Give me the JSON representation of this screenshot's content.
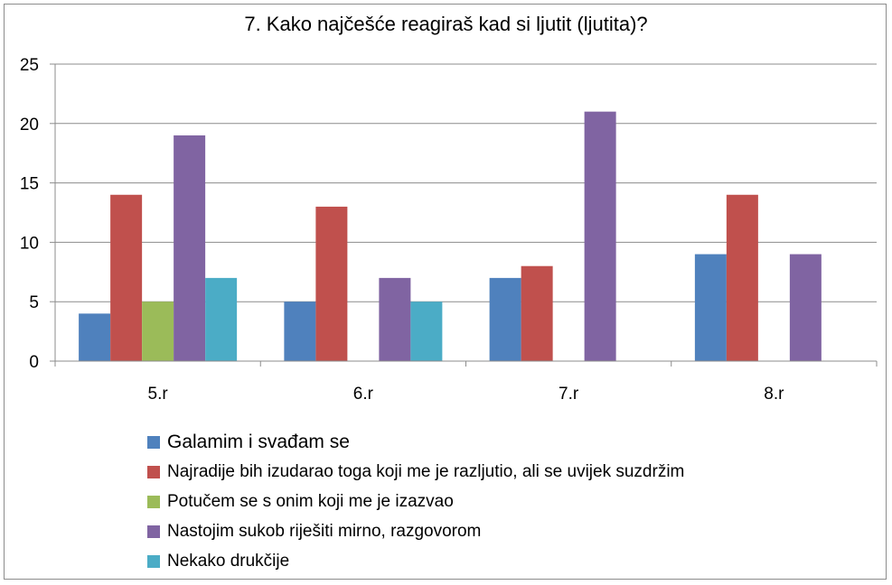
{
  "chart_data": {
    "type": "bar",
    "title": "7. Kako najčešće reagiraš kad si ljutit (ljutita)?",
    "categories": [
      "5.r",
      "6.r",
      "7.r",
      "8.r"
    ],
    "ylim": [
      0,
      25
    ],
    "yticks": [
      "0",
      "5",
      "10",
      "15",
      "20",
      "25"
    ],
    "grid": true,
    "legend_position": "bottom",
    "series": [
      {
        "name": "Galamim i svađam se",
        "color": "#4f81bd",
        "values": [
          4,
          5,
          7,
          9
        ]
      },
      {
        "name": "Najradije bih izudarao toga koji me je razljutio, ali se uvijek suzdržim",
        "color": "#c0504d",
        "values": [
          14,
          13,
          8,
          14
        ]
      },
      {
        "name": "Potučem se s onim koji me je izazvao",
        "color": "#9bbb59",
        "values": [
          5,
          0,
          0,
          0
        ]
      },
      {
        "name": "Nastojim sukob riješiti mirno, razgovorom",
        "color": "#8064a2",
        "values": [
          19,
          7,
          21,
          9
        ]
      },
      {
        "name": "Nekako drukčije",
        "color": "#4bacc6",
        "values": [
          7,
          5,
          0,
          0
        ]
      }
    ]
  }
}
